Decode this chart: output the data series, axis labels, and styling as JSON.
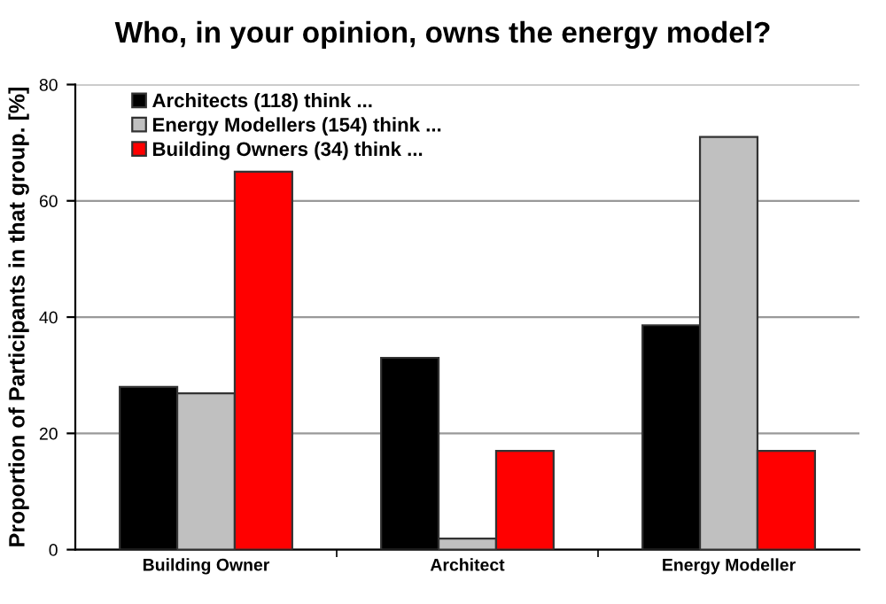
{
  "chart_data": {
    "type": "bar",
    "title": "Who, in your opinion, owns the energy model?",
    "ylabel": "Proportion of Participants in that group. [%]",
    "categories": [
      "Building Owner",
      "Architect",
      "Energy Modeller"
    ],
    "series": [
      {
        "name": "Architects (118) think ...",
        "color": "#000000",
        "values": [
          28,
          33,
          38.6
        ]
      },
      {
        "name": "Energy Modellers (154) think ...",
        "color": "#c0c0c0",
        "values": [
          26.9,
          1.9,
          71
        ]
      },
      {
        "name": "Building Owners (34) think ...",
        "color": "#ff0000",
        "values": [
          65,
          17,
          17
        ]
      }
    ],
    "ylim": [
      0,
      80
    ],
    "yticks": [
      0,
      20,
      40,
      60,
      80
    ],
    "grid": "y",
    "legend": "top left"
  }
}
